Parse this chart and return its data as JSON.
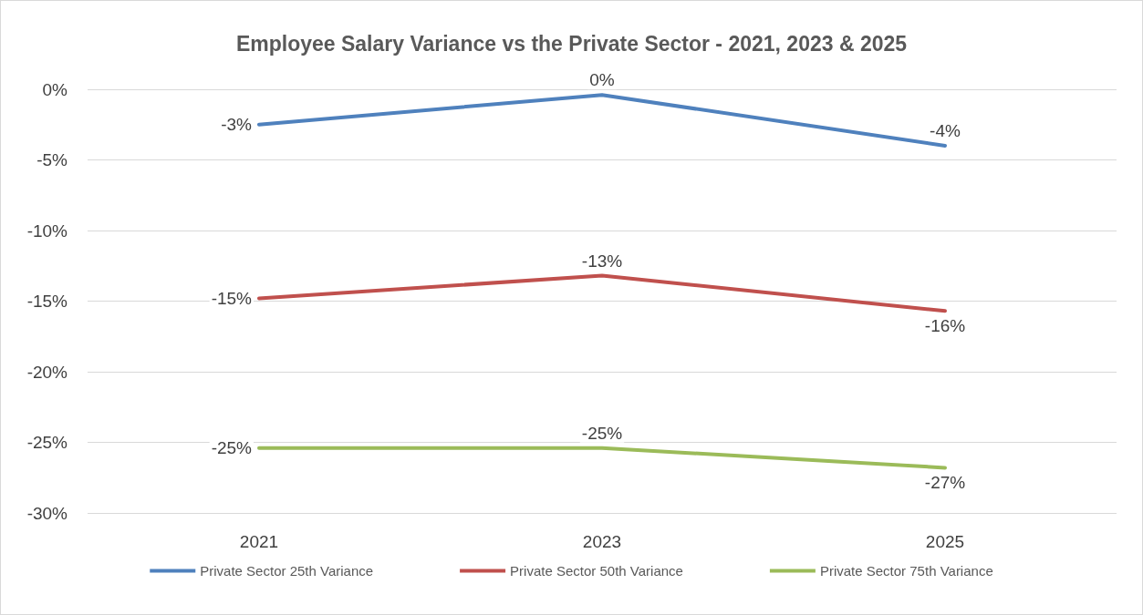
{
  "chart_data": {
    "type": "line",
    "title": "Employee Salary Variance vs the Private Sector - 2021, 2023 & 2025",
    "categories": [
      "2021",
      "2023",
      "2025"
    ],
    "series": [
      {
        "name": "Private Sector 25th Variance",
        "color": "#4f81bd",
        "values": [
          -2.5,
          -0.4,
          -4.0
        ],
        "value_labels": [
          "-3%",
          "0%",
          "-4%"
        ]
      },
      {
        "name": "Private Sector 50th Variance",
        "color": "#c0504d",
        "values": [
          -14.8,
          -13.2,
          -15.7
        ],
        "value_labels": [
          "-15%",
          "-13%",
          "-16%"
        ]
      },
      {
        "name": "Private Sector 75th Variance",
        "color": "#9bbb59",
        "values": [
          -25.4,
          -25.4,
          -26.8
        ],
        "value_labels": [
          "-25%",
          "-25%",
          "-27%"
        ]
      }
    ],
    "ylim": [
      -30,
      0
    ],
    "yticks": [
      {
        "value": -30,
        "label": "-30%"
      },
      {
        "value": -25,
        "label": "-25%"
      },
      {
        "value": -20,
        "label": "-20%"
      },
      {
        "value": -15,
        "label": "-15%"
      },
      {
        "value": -10,
        "label": "-10%"
      },
      {
        "value": -5,
        "label": "-5%"
      },
      {
        "value": 0,
        "label": "0%"
      }
    ],
    "grid": "y",
    "legend": "bottom",
    "marker": "none",
    "line_style": "solid"
  }
}
